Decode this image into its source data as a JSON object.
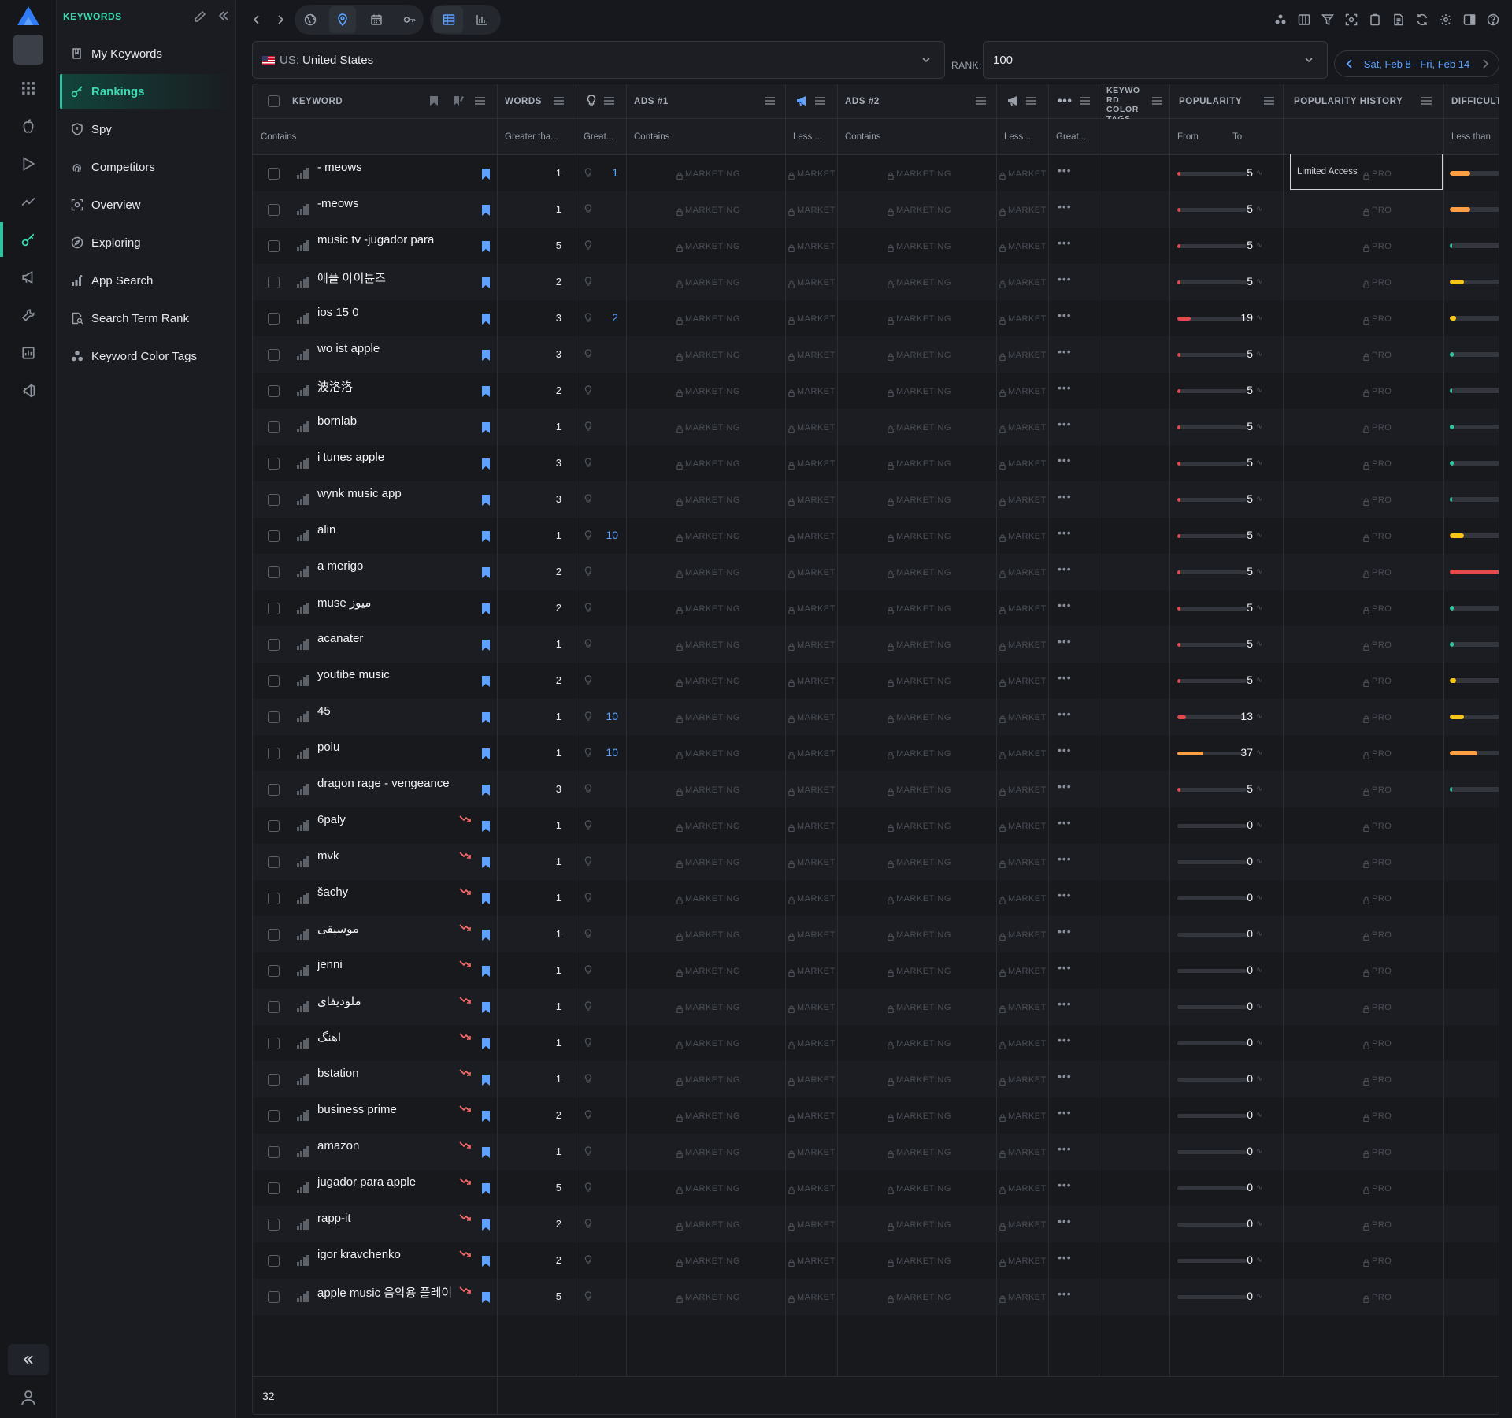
{
  "nav": {
    "heading": "KEYWORDS",
    "items": [
      {
        "label": "My Keywords",
        "icon": "book-icon"
      },
      {
        "label": "Rankings",
        "icon": "key-icon",
        "active": true
      },
      {
        "label": "Spy",
        "icon": "shield-icon"
      },
      {
        "label": "Competitors",
        "icon": "fingerprint-icon"
      },
      {
        "label": "Overview",
        "icon": "scan-icon"
      },
      {
        "label": "Exploring",
        "icon": "compass-icon"
      },
      {
        "label": "App Search",
        "icon": "bar-chart-icon"
      },
      {
        "label": "Search Term Rank",
        "icon": "document-search-icon"
      },
      {
        "label": "Keyword Color Tags",
        "icon": "tags-icon"
      }
    ]
  },
  "filters": {
    "country_prefix": "US:",
    "country": "United States",
    "rank_label": "RANK:",
    "rank_value": "100",
    "date_range": "Sat, Feb 8 - Fri, Feb 14"
  },
  "columns": {
    "keyword": "KEYWORD",
    "words": "WORDS",
    "ads1": "ADS #1",
    "ads2": "ADS #2",
    "color_tags": "KEYWO RD COLOR TAGS",
    "popularity": "POPULARITY",
    "popularity_history": "POPULARITY HISTORY",
    "difficulty": "DIFFICULT"
  },
  "filter_row": {
    "keyword": "Contains",
    "words": "Greater tha...",
    "rank": "Great...",
    "ads1": "Contains",
    "ads1_less": "Less ...",
    "ads2": "Contains",
    "ads2_less": "Less ...",
    "more": "Great...",
    "pop_from": "From",
    "pop_to": "To",
    "history": "Limited Access",
    "difficulty": "Less than"
  },
  "lock_labels": {
    "marketing": "MARKETING",
    "market": "MARKET",
    "pro": "PRO"
  },
  "rows": [
    {
      "keyword": "- meows",
      "words": "1",
      "rank": "1",
      "popularity": "5",
      "pop_color": "#e5484d",
      "pop_fill": 5,
      "diff_color": "#ff9f43",
      "diff_fill": 40,
      "trend": false
    },
    {
      "keyword": "-meows",
      "words": "1",
      "rank": "",
      "popularity": "5",
      "pop_color": "#e5484d",
      "pop_fill": 5,
      "diff_color": "#ff9f43",
      "diff_fill": 40,
      "trend": false
    },
    {
      "keyword": "music tv -jugador para",
      "words": "5",
      "rank": "",
      "popularity": "5",
      "pop_color": "#e5484d",
      "pop_fill": 5,
      "diff_color": "#2fc3a0",
      "diff_fill": 4,
      "trend": false
    },
    {
      "keyword": "애플 아이튠즈",
      "words": "2",
      "rank": "",
      "popularity": "5",
      "pop_color": "#e5484d",
      "pop_fill": 5,
      "diff_color": "#f5c518",
      "diff_fill": 28,
      "trend": false
    },
    {
      "keyword": "ios 15 0",
      "words": "3",
      "rank": "2",
      "popularity": "19",
      "pop_color": "#e5484d",
      "pop_fill": 19,
      "diff_color": "#f5c518",
      "diff_fill": 12,
      "trend": false
    },
    {
      "keyword": "wo ist apple",
      "words": "3",
      "rank": "",
      "popularity": "5",
      "pop_color": "#e5484d",
      "pop_fill": 5,
      "diff_color": "#2fc3a0",
      "diff_fill": 8,
      "trend": false
    },
    {
      "keyword": "波洛洛",
      "words": "2",
      "rank": "",
      "popularity": "5",
      "pop_color": "#e5484d",
      "pop_fill": 5,
      "diff_color": "#2fc3a0",
      "diff_fill": 4,
      "trend": false
    },
    {
      "keyword": "bornlab",
      "words": "1",
      "rank": "",
      "popularity": "5",
      "pop_color": "#e5484d",
      "pop_fill": 5,
      "diff_color": "#2fc3a0",
      "diff_fill": 8,
      "trend": false
    },
    {
      "keyword": "i tunes apple",
      "words": "3",
      "rank": "",
      "popularity": "5",
      "pop_color": "#e5484d",
      "pop_fill": 5,
      "diff_color": "#2fc3a0",
      "diff_fill": 8,
      "trend": false
    },
    {
      "keyword": "wynk music app",
      "words": "3",
      "rank": "",
      "popularity": "5",
      "pop_color": "#e5484d",
      "pop_fill": 5,
      "diff_color": "#2fc3a0",
      "diff_fill": 4,
      "trend": false
    },
    {
      "keyword": "alin",
      "words": "1",
      "rank": "10",
      "popularity": "5",
      "pop_color": "#e5484d",
      "pop_fill": 5,
      "diff_color": "#f5c518",
      "diff_fill": 28,
      "trend": false
    },
    {
      "keyword": "a merigo",
      "words": "2",
      "rank": "",
      "popularity": "5",
      "pop_color": "#e5484d",
      "pop_fill": 5,
      "diff_color": "#e5484d",
      "diff_fill": 100,
      "trend": false
    },
    {
      "keyword": "muse  میوز",
      "words": "2",
      "rank": "",
      "popularity": "5",
      "pop_color": "#e5484d",
      "pop_fill": 5,
      "diff_color": "#2fc3a0",
      "diff_fill": 8,
      "trend": false
    },
    {
      "keyword": "acanater",
      "words": "1",
      "rank": "",
      "popularity": "5",
      "pop_color": "#e5484d",
      "pop_fill": 5,
      "diff_color": "#2fc3a0",
      "diff_fill": 8,
      "trend": false
    },
    {
      "keyword": "youtibe music",
      "words": "2",
      "rank": "",
      "popularity": "5",
      "pop_color": "#e5484d",
      "pop_fill": 5,
      "diff_color": "#f5c518",
      "diff_fill": 12,
      "trend": false
    },
    {
      "keyword": "45",
      "words": "1",
      "rank": "10",
      "popularity": "13",
      "pop_color": "#e5484d",
      "pop_fill": 13,
      "diff_color": "#f5c518",
      "diff_fill": 28,
      "trend": false
    },
    {
      "keyword": "polu",
      "words": "1",
      "rank": "10",
      "popularity": "37",
      "pop_color": "#ff9f43",
      "pop_fill": 37,
      "diff_color": "#ff9f43",
      "diff_fill": 55,
      "trend": false
    },
    {
      "keyword": "dragon rage - vengeance",
      "words": "3",
      "rank": "",
      "popularity": "5",
      "pop_color": "#e5484d",
      "pop_fill": 5,
      "diff_color": "#2fc3a0",
      "diff_fill": 4,
      "trend": false
    },
    {
      "keyword": "6paly",
      "words": "1",
      "rank": "",
      "popularity": "0",
      "pop_color": "#e5484d",
      "pop_fill": 0,
      "diff_color": "",
      "diff_fill": 0,
      "trend": true
    },
    {
      "keyword": "mvk",
      "words": "1",
      "rank": "",
      "popularity": "0",
      "pop_color": "#e5484d",
      "pop_fill": 0,
      "diff_color": "",
      "diff_fill": 0,
      "trend": true
    },
    {
      "keyword": "šachy",
      "words": "1",
      "rank": "",
      "popularity": "0",
      "pop_color": "#e5484d",
      "pop_fill": 0,
      "diff_color": "",
      "diff_fill": 0,
      "trend": true
    },
    {
      "keyword": "موسیقی",
      "words": "1",
      "rank": "",
      "popularity": "0",
      "pop_color": "#e5484d",
      "pop_fill": 0,
      "diff_color": "",
      "diff_fill": 0,
      "trend": true
    },
    {
      "keyword": "jenni",
      "words": "1",
      "rank": "",
      "popularity": "0",
      "pop_color": "#e5484d",
      "pop_fill": 0,
      "diff_color": "",
      "diff_fill": 0,
      "trend": true
    },
    {
      "keyword": "ملودیفای",
      "words": "1",
      "rank": "",
      "popularity": "0",
      "pop_color": "#e5484d",
      "pop_fill": 0,
      "diff_color": "",
      "diff_fill": 0,
      "trend": true
    },
    {
      "keyword": "اهنگ",
      "words": "1",
      "rank": "",
      "popularity": "0",
      "pop_color": "#e5484d",
      "pop_fill": 0,
      "diff_color": "",
      "diff_fill": 0,
      "trend": true
    },
    {
      "keyword": "bstation",
      "words": "1",
      "rank": "",
      "popularity": "0",
      "pop_color": "#e5484d",
      "pop_fill": 0,
      "diff_color": "",
      "diff_fill": 0,
      "trend": true
    },
    {
      "keyword": "business prime",
      "words": "2",
      "rank": "",
      "popularity": "0",
      "pop_color": "#e5484d",
      "pop_fill": 0,
      "diff_color": "",
      "diff_fill": 0,
      "trend": true
    },
    {
      "keyword": "amazon",
      "words": "1",
      "rank": "",
      "popularity": "0",
      "pop_color": "#e5484d",
      "pop_fill": 0,
      "diff_color": "",
      "diff_fill": 0,
      "trend": true
    },
    {
      "keyword": "jugador para apple",
      "words": "5",
      "rank": "",
      "popularity": "0",
      "pop_color": "#e5484d",
      "pop_fill": 0,
      "diff_color": "",
      "diff_fill": 0,
      "trend": true
    },
    {
      "keyword": "rapp-it",
      "words": "2",
      "rank": "",
      "popularity": "0",
      "pop_color": "#e5484d",
      "pop_fill": 0,
      "diff_color": "",
      "diff_fill": 0,
      "trend": true
    },
    {
      "keyword": "igor kravchenko",
      "words": "2",
      "rank": "",
      "popularity": "0",
      "pop_color": "#e5484d",
      "pop_fill": 0,
      "diff_color": "",
      "diff_fill": 0,
      "trend": true
    },
    {
      "keyword": "apple music 음악용 플레이",
      "words": "5",
      "rank": "",
      "popularity": "0",
      "pop_color": "#e5484d",
      "pop_fill": 0,
      "diff_color": "",
      "diff_fill": 0,
      "trend": true
    }
  ],
  "footer": {
    "count": "32"
  }
}
